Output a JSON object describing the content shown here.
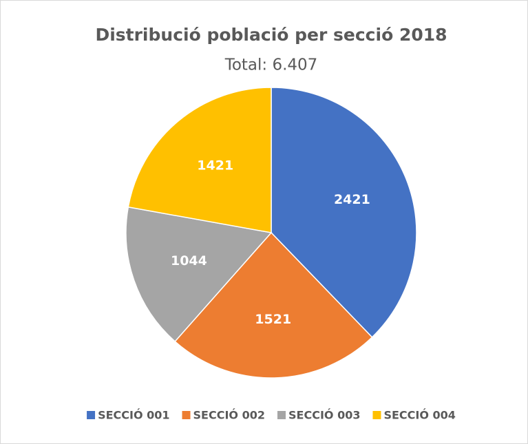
{
  "chart_data": {
    "type": "pie",
    "title": "Distribució població per secció  2018",
    "subtitle": "Total: 6.407",
    "categories": [
      "SECCIÓ 001",
      "SECCIÓ 002",
      "SECCIÓ 003",
      "SECCIÓ 004"
    ],
    "values": [
      2421,
      1521,
      1044,
      1421
    ],
    "colors": [
      "#4472c4",
      "#ed7d31",
      "#a5a5a5",
      "#ffc000"
    ],
    "legend": "bottom"
  }
}
